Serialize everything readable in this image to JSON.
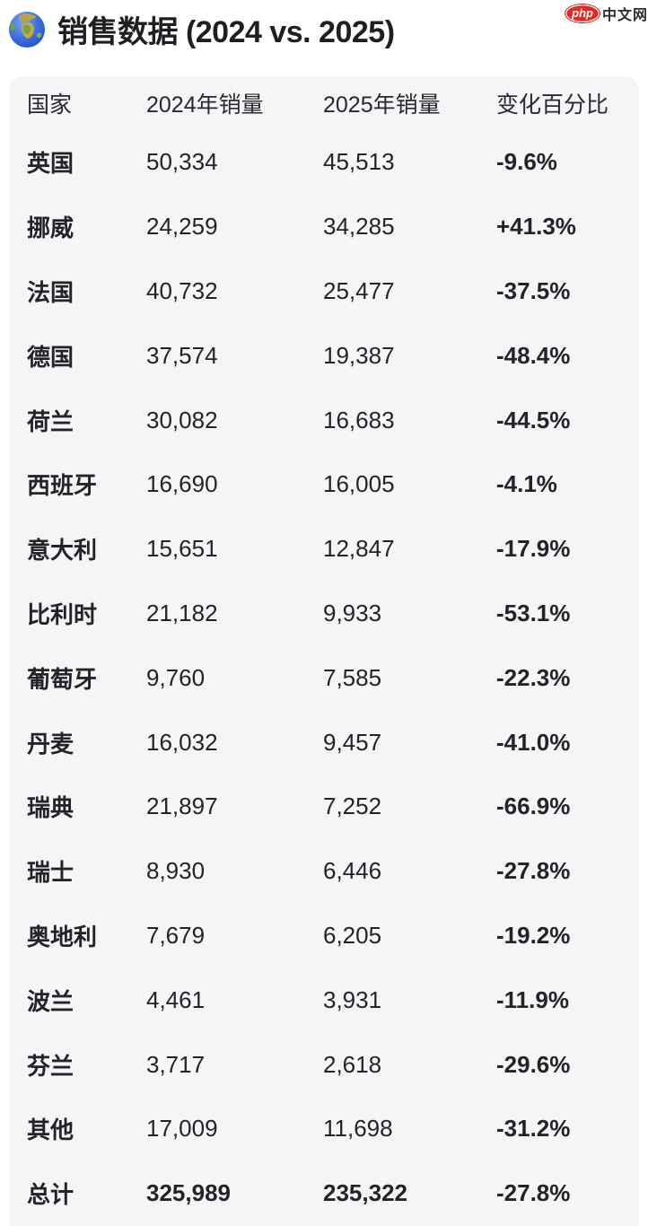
{
  "title": "销售数据 (2024 vs. 2025)",
  "watermark": {
    "badge": "php",
    "site": "中文网"
  },
  "chart_data": {
    "type": "table",
    "title": "销售数据 (2024 vs. 2025)",
    "columns": [
      "国家",
      "2024年销量",
      "2025年销量",
      "变化百分比"
    ],
    "rows": [
      [
        "英国",
        "50,334",
        "45,513",
        "-9.6%"
      ],
      [
        "挪威",
        "24,259",
        "34,285",
        "+41.3%"
      ],
      [
        "法国",
        "40,732",
        "25,477",
        "-37.5%"
      ],
      [
        "德国",
        "37,574",
        "19,387",
        "-48.4%"
      ],
      [
        "荷兰",
        "30,082",
        "16,683",
        "-44.5%"
      ],
      [
        "西班牙",
        "16,690",
        "16,005",
        "-4.1%"
      ],
      [
        "意大利",
        "15,651",
        "12,847",
        "-17.9%"
      ],
      [
        "比利时",
        "21,182",
        "9,933",
        "-53.1%"
      ],
      [
        "葡萄牙",
        "9,760",
        "7,585",
        "-22.3%"
      ],
      [
        "丹麦",
        "16,032",
        "9,457",
        "-41.0%"
      ],
      [
        "瑞典",
        "21,897",
        "7,252",
        "-66.9%"
      ],
      [
        "瑞士",
        "8,930",
        "6,446",
        "-27.8%"
      ],
      [
        "奥地利",
        "7,679",
        "6,205",
        "-19.2%"
      ],
      [
        "波兰",
        "4,461",
        "3,931",
        "-11.9%"
      ],
      [
        "芬兰",
        "3,717",
        "2,618",
        "-29.6%"
      ],
      [
        "其他",
        "17,009",
        "11,698",
        "-31.2%"
      ],
      [
        "总计",
        "325,989",
        "235,322",
        "-27.8%"
      ]
    ],
    "total_row_index": 16
  },
  "colors": {
    "page_background": "#ffffff",
    "card_background": "#f4f5f7",
    "text": "#222427",
    "watermark_badge_red": "#e8281e"
  }
}
